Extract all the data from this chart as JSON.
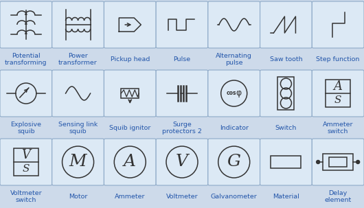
{
  "background": "#cddaea",
  "cell_bg": "#dce9f5",
  "cell_border": "#8eaac8",
  "text_color": "#2255aa",
  "grid_rows": 3,
  "grid_cols": 7,
  "labels": [
    [
      "Potential\ntransforming",
      "Power\ntransformer",
      "Pickup head",
      "Pulse",
      "Alternating\npulse",
      "Saw tooth",
      "Step function"
    ],
    [
      "Explosive\nsquib",
      "Sensing link\nsquib",
      "Squib ignitor",
      "Surge\nprotectors 2",
      "Indicator",
      "Switch",
      "Ammeter\nswitch"
    ],
    [
      "Voltmeter\nswitch",
      "Motor",
      "Ammeter",
      "Voltmeter",
      "Galvanometer",
      "Material",
      "Delay\nelement"
    ]
  ],
  "fig_width": 5.3,
  "fig_height": 3.03,
  "dpi": 100
}
